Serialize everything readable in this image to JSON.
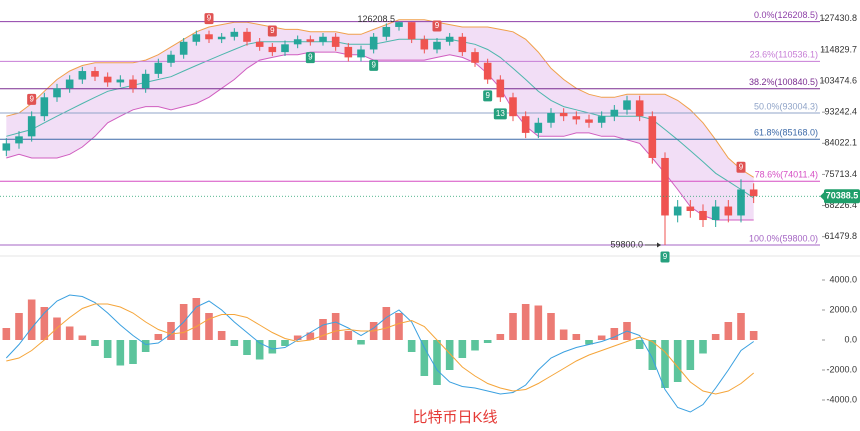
{
  "chart_data": [
    {
      "type": "candlestick",
      "title": "比特币日K线",
      "log_scale": true,
      "ylim": [
        58800,
        134800
      ],
      "yticks": [
        127430.8,
        114829.7,
        103474.6,
        93242.4,
        84022.1,
        75713.4,
        68226.4,
        61479.8
      ],
      "up_color": "#26a69a",
      "down_color": "#ef5350",
      "open": [
        82000,
        84000,
        86000,
        92000,
        98000,
        101000,
        104000,
        107000,
        105000,
        103000,
        104000,
        101000,
        106000,
        110000,
        113000,
        118000,
        121000,
        119000,
        120000,
        122000,
        118000,
        116000,
        114000,
        117000,
        119000,
        118000,
        120000,
        116000,
        112000,
        115000,
        120000,
        124000,
        126000,
        119000,
        115000,
        118000,
        120000,
        114000,
        110000,
        104000,
        98000,
        92000,
        87000,
        90000,
        93000,
        92000,
        91000,
        90000,
        92000,
        94000,
        97000,
        92000,
        80000,
        66000,
        68000,
        67000,
        65000,
        68000,
        66000,
        72000
      ],
      "high": [
        85500,
        87500,
        93500,
        99500,
        102500,
        105500,
        108500,
        108500,
        106500,
        105500,
        105500,
        107500,
        111500,
        114500,
        119500,
        122500,
        122500,
        121500,
        123500,
        123500,
        119500,
        117500,
        118500,
        120500,
        120500,
        121500,
        121500,
        117500,
        116500,
        121500,
        125500,
        126208.5,
        126000,
        120500,
        119500,
        121500,
        121500,
        115500,
        111500,
        105500,
        99500,
        93500,
        91500,
        94500,
        94500,
        93500,
        92500,
        93500,
        95500,
        98500,
        98500,
        93500,
        81500,
        69500,
        69500,
        68500,
        69500,
        69500,
        74500,
        73500
      ],
      "low": [
        80500,
        82500,
        84500,
        90500,
        96500,
        99500,
        102500,
        103500,
        101500,
        101500,
        99500,
        99500,
        104500,
        108500,
        111500,
        116500,
        117500,
        117500,
        118500,
        116500,
        114500,
        112500,
        112500,
        115500,
        116500,
        116500,
        114500,
        110500,
        110500,
        113500,
        118500,
        122500,
        117500,
        113500,
        113500,
        116500,
        112500,
        108500,
        102500,
        96500,
        90500,
        85500,
        85500,
        88500,
        90500,
        89500,
        88500,
        88500,
        90500,
        92500,
        90500,
        78500,
        59800,
        64500,
        65500,
        63500,
        63500,
        64500,
        64500,
        68800
      ],
      "close": [
        84000,
        86000,
        92000,
        98000,
        101000,
        104000,
        107000,
        105000,
        103000,
        104000,
        101000,
        106000,
        110000,
        113000,
        118000,
        121000,
        119000,
        120000,
        122000,
        118000,
        116000,
        114000,
        117000,
        119000,
        118000,
        120000,
        116000,
        112000,
        115000,
        120000,
        124000,
        126000,
        119000,
        115000,
        118000,
        120000,
        114000,
        110000,
        104000,
        98000,
        92000,
        87000,
        90000,
        93000,
        92000,
        91000,
        90000,
        92000,
        94000,
        97000,
        92000,
        80000,
        66000,
        68000,
        67000,
        65000,
        68000,
        66000,
        72000,
        70388.5
      ],
      "bands": {
        "upper_color": "#f0a04b",
        "middle_color": "#4db6ac",
        "lower_color": "#d05ec0",
        "fill": "#e7c3ef",
        "upper": [
          92000,
          93000,
          96000,
          100000,
          104000,
          107000,
          109000,
          110000,
          110000,
          110000,
          110000,
          111000,
          113000,
          116000,
          119000,
          122000,
          124000,
          125000,
          126000,
          126000,
          125000,
          124000,
          123000,
          123000,
          122000,
          122000,
          122000,
          121000,
          121000,
          123000,
          125000,
          127000,
          127000,
          127000,
          126000,
          125000,
          124000,
          124000,
          124000,
          123000,
          122000,
          119000,
          114000,
          108000,
          104000,
          101000,
          99000,
          98000,
          98000,
          99000,
          99000,
          99000,
          99000,
          97000,
          94000,
          90000,
          85000,
          80000,
          77000,
          75000
        ],
        "middle": [
          86000,
          87000,
          88000,
          90000,
          92000,
          94000,
          96000,
          98000,
          100000,
          101000,
          102000,
          103000,
          104000,
          105000,
          107000,
          109000,
          111000,
          113000,
          115000,
          117000,
          118000,
          118000,
          118000,
          118000,
          118000,
          118000,
          118000,
          117000,
          117000,
          117000,
          118000,
          119000,
          119000,
          119000,
          119000,
          119000,
          118000,
          117000,
          115000,
          112000,
          108000,
          104000,
          100000,
          97000,
          95000,
          94000,
          93000,
          92000,
          92000,
          92000,
          92000,
          91000,
          88000,
          85000,
          82000,
          79000,
          76000,
          74000,
          72000,
          70000
        ],
        "lower": [
          80000,
          81000,
          80000,
          80000,
          80000,
          81000,
          83000,
          86000,
          90000,
          92000,
          94000,
          95000,
          95000,
          94000,
          95000,
          96000,
          98000,
          101000,
          104000,
          108000,
          111000,
          112000,
          113000,
          113000,
          114000,
          114000,
          114000,
          113000,
          113000,
          111000,
          111000,
          111000,
          111000,
          111000,
          112000,
          113000,
          112000,
          110000,
          106000,
          101000,
          94000,
          89000,
          86000,
          86000,
          86000,
          87000,
          87000,
          86000,
          86000,
          85000,
          84000,
          80000,
          76000,
          72000,
          68000,
          66000,
          65000,
          65000,
          65000,
          65000
        ]
      },
      "levels": [
        {
          "value": 126208.5,
          "label": "0.0%(126208.5)",
          "color": "#8e3fa8"
        },
        {
          "value": 110536.1,
          "label": "23.6%(110536.1)",
          "color": "#c77dd6"
        },
        {
          "value": 100840.5,
          "label": "38.2%(100840.5)",
          "color": "#7b2d91"
        },
        {
          "value": 93004.3,
          "label": "50.0%(93004.3)",
          "color": "#90a4c8"
        },
        {
          "value": 85168.0,
          "label": "61.8%(85168.0)",
          "color": "#3d6aa8"
        },
        {
          "value": 74011.4,
          "label": "78.6%(74011.4)",
          "color": "#d64fc4"
        },
        {
          "value": 59800.0,
          "label": "100.0%(59800.0)",
          "color": "#a566c4"
        }
      ],
      "last_price": 70388.5,
      "last_price_color": "#1e9e6a",
      "high_annotation": {
        "index": 31,
        "value": 126208.5
      },
      "low_annotation": {
        "index": 52,
        "value": 59800,
        "label": "59800.0"
      },
      "td_marks": [
        {
          "index": 2,
          "label": "9",
          "color": "#e05252",
          "position": "above"
        },
        {
          "index": 16,
          "label": "9",
          "color": "#e05252",
          "position": "above"
        },
        {
          "index": 21,
          "label": "9",
          "color": "#e05252",
          "position": "above"
        },
        {
          "index": 24,
          "label": "9",
          "color": "#26a07e",
          "position": "below"
        },
        {
          "index": 29,
          "label": "9",
          "color": "#26a07e",
          "position": "below"
        },
        {
          "index": 34,
          "label": "9",
          "color": "#e05252",
          "position": "above"
        },
        {
          "index": 38,
          "label": "9",
          "color": "#26a07e",
          "position": "below"
        },
        {
          "index": 39,
          "label": "13",
          "color": "#26a07e",
          "position": "below"
        },
        {
          "index": 52,
          "label": "9",
          "color": "#26a07e",
          "position": "below"
        },
        {
          "index": 58,
          "label": "9",
          "color": "#e05252",
          "position": "above"
        }
      ]
    },
    {
      "type": "macd",
      "ylim": [
        -6000,
        5200
      ],
      "yticks": [
        {
          "value": 4000,
          "label": "4000.0"
        },
        {
          "value": 2000,
          "label": "2000.0"
        },
        {
          "value": 0,
          "label": "0.0"
        },
        {
          "value": -2000,
          "label": "-2000.0"
        },
        {
          "value": -4000,
          "label": "-4000.0"
        }
      ],
      "histogram": {
        "up_color": "#ec7b74",
        "down_color": "#5cc49c",
        "values": [
          800,
          1800,
          2700,
          2200,
          1500,
          900,
          300,
          -400,
          -1200,
          -1700,
          -1600,
          -800,
          400,
          1200,
          2400,
          2800,
          1800,
          600,
          -400,
          -1000,
          -1300,
          -900,
          -400,
          300,
          500,
          1400,
          1800,
          600,
          -300,
          1200,
          2200,
          1800,
          -800,
          -2400,
          -3000,
          -2000,
          -1200,
          -700,
          -200,
          400,
          1800,
          2400,
          2300,
          1800,
          700,
          400,
          -300,
          300,
          800,
          1200,
          -600,
          -2000,
          -3200,
          -2800,
          -2000,
          -900,
          400,
          1200,
          1800,
          600
        ]
      },
      "lines": [
        {
          "color": "#3aa0e0",
          "values": [
            -1200,
            -300,
            800,
            1800,
            2600,
            3000,
            2900,
            2500,
            1800,
            1000,
            300,
            -300,
            -200,
            400,
            1200,
            2200,
            2600,
            2000,
            1200,
            500,
            -200,
            -600,
            -500,
            0,
            500,
            1000,
            1200,
            800,
            300,
            800,
            1500,
            2000,
            1200,
            -500,
            -2000,
            -2800,
            -3100,
            -3200,
            -3400,
            -3600,
            -3500,
            -3000,
            -2000,
            -1200,
            -800,
            -500,
            -300,
            -100,
            200,
            600,
            300,
            -1200,
            -3300,
            -4500,
            -4800,
            -4300,
            -3200,
            -2000,
            -700,
            -100
          ]
        },
        {
          "color": "#f5a53a",
          "values": [
            -1400,
            -1200,
            -700,
            0,
            800,
            1500,
            2100,
            2400,
            2400,
            2200,
            1800,
            1200,
            700,
            400,
            500,
            900,
            1400,
            1700,
            1700,
            1500,
            1000,
            500,
            100,
            -100,
            0,
            300,
            600,
            700,
            600,
            600,
            800,
            1100,
            1300,
            900,
            0,
            -900,
            -1800,
            -2400,
            -2900,
            -3200,
            -3400,
            -3300,
            -2900,
            -2400,
            -1900,
            -1400,
            -1000,
            -700,
            -400,
            -100,
            200,
            -100,
            -800,
            -1800,
            -2800,
            -3400,
            -3600,
            -3400,
            -2900,
            -2200
          ]
        }
      ]
    }
  ]
}
